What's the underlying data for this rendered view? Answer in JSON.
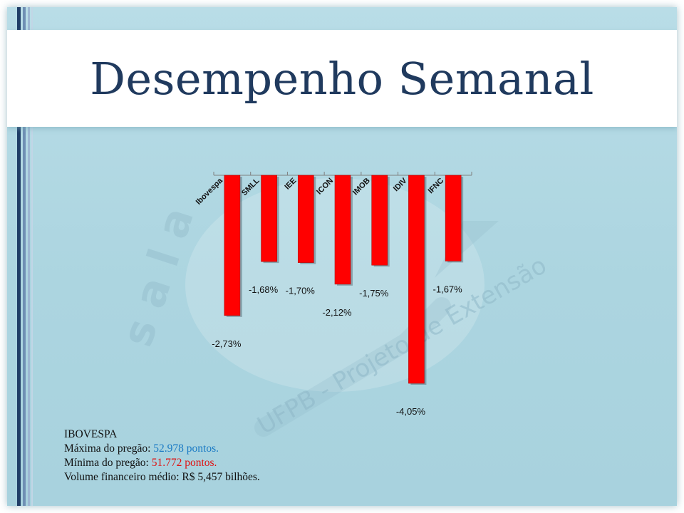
{
  "slide": {
    "title": "Desempenho Semanal",
    "watermark_text": "UFPB - Projeto de Extensão",
    "watermark_logo": "s a l a"
  },
  "colors": {
    "title": "#203a5e",
    "bar": "#ff0000",
    "max_value": "#1a7ac4",
    "min_value": "#e01010",
    "background": "#b9dde7"
  },
  "chart_data": {
    "type": "bar",
    "orientation": "vertical",
    "categories": [
      "Ibovespa",
      "SMLL",
      "IEE",
      "ICON",
      "IMOB",
      "IDIV",
      "IFNC"
    ],
    "values": [
      -2.73,
      -1.68,
      -1.7,
      -2.12,
      -1.75,
      -4.05,
      -1.67
    ],
    "data_labels": [
      "-2,73%",
      "-1,68%",
      "-1,70%",
      "-2,12%",
      "-1,75%",
      "-4,05%",
      "-1,67%"
    ],
    "ylim": [
      -4.05,
      0
    ],
    "grid": false,
    "legend": "none"
  },
  "info": {
    "heading": "IBOVESPA",
    "max_label": "Máxima  do pregão:",
    "max_value": "52.978 pontos.",
    "min_label": "Mínima  do pregão:",
    "min_value": "51.772 pontos.",
    "volume": "Volume  financeiro  médio: R$ 5,457 bilhões."
  }
}
